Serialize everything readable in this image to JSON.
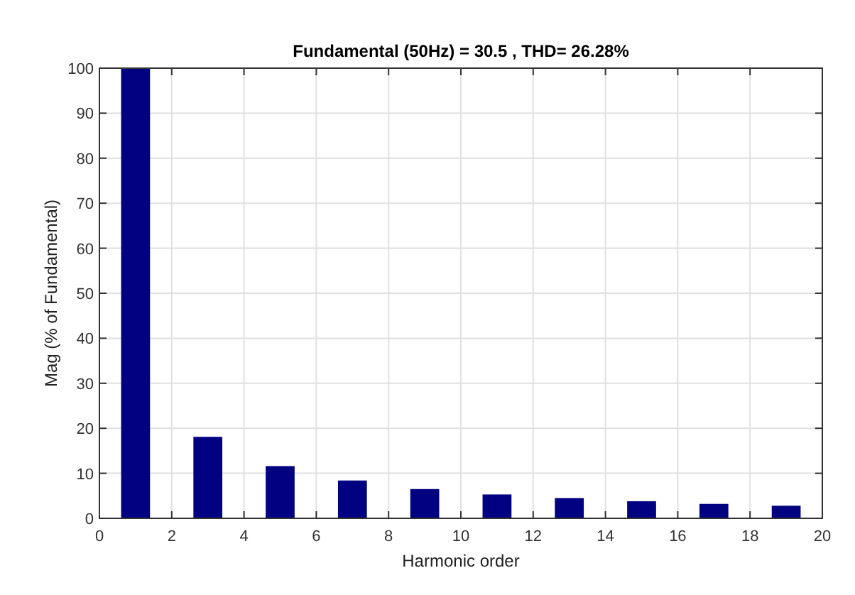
{
  "chart_data": {
    "type": "bar",
    "title": "Fundamental (50Hz) = 30.5 , THD= 26.28%",
    "xlabel": "Harmonic order",
    "ylabel": "Mag (% of Fundamental)",
    "x": [
      1,
      3,
      5,
      7,
      9,
      11,
      13,
      15,
      17,
      19
    ],
    "values": [
      100,
      18.1,
      11.6,
      8.4,
      6.5,
      5.3,
      4.5,
      3.8,
      3.2,
      2.8
    ],
    "color": "#000080",
    "xlim": [
      0,
      20
    ],
    "xticks": [
      0,
      2,
      4,
      6,
      8,
      10,
      12,
      14,
      16,
      18,
      20
    ],
    "ylim": [
      0,
      100
    ],
    "yticks": [
      0,
      10,
      20,
      30,
      40,
      50,
      60,
      70,
      80,
      90,
      100
    ],
    "grid": true
  }
}
